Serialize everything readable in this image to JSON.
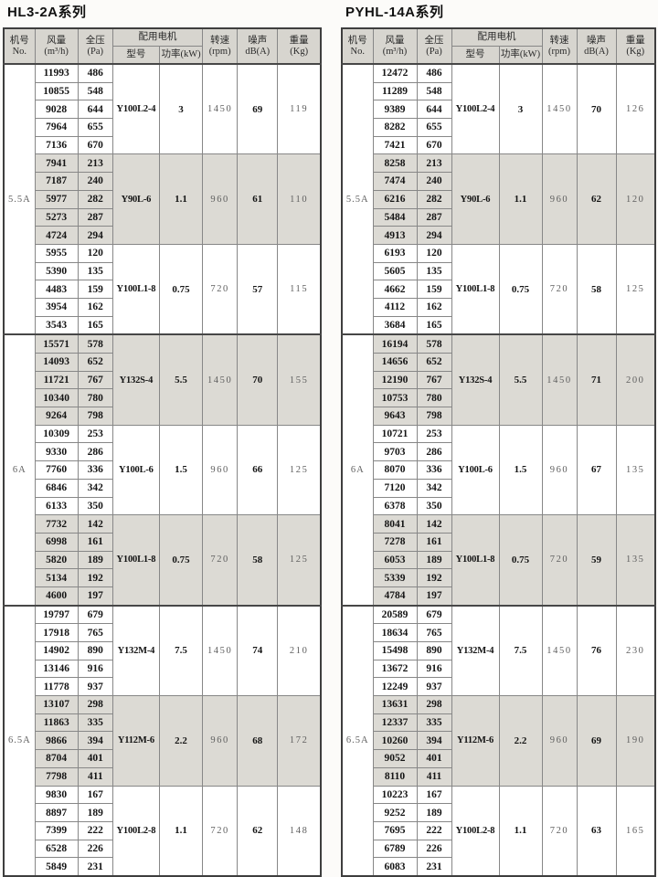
{
  "colors": {
    "page_bg": "#fcfbf9",
    "header_bg": "#d7d5cf",
    "shaded_band_bg": "#dcdad4",
    "grid_line": "#878787",
    "outer_border": "#3e3e3e"
  },
  "header": {
    "series": [
      "机号",
      "No."
    ],
    "airflow": [
      "风量",
      "(m³/h)"
    ],
    "pressure": [
      "全压",
      "(Pa)"
    ],
    "motor_group": "配用电机",
    "motor_model": "型号",
    "motor_power": "功率(kW)",
    "speed": [
      "转速",
      "(rpm)"
    ],
    "noise": [
      "噪声",
      "dB(A)"
    ],
    "weight": [
      "重量",
      "(Kg)"
    ]
  },
  "tables": [
    {
      "title": "HL3-2A系列",
      "sections": [
        {
          "no": "5.5A",
          "groups": [
            {
              "shaded": false,
              "model": "Y100L2-4",
              "power": "3",
              "rpm": "1450",
              "noise": "69",
              "weight": "119",
              "rows": [
                [
                  11993,
                  486
                ],
                [
                  10855,
                  548
                ],
                [
                  9028,
                  644
                ],
                [
                  7964,
                  655
                ],
                [
                  7136,
                  670
                ]
              ]
            },
            {
              "shaded": true,
              "model": "Y90L-6",
              "power": "1.1",
              "rpm": "960",
              "noise": "61",
              "weight": "110",
              "rows": [
                [
                  7941,
                  213
                ],
                [
                  7187,
                  240
                ],
                [
                  5977,
                  282
                ],
                [
                  5273,
                  287
                ],
                [
                  4724,
                  294
                ]
              ]
            },
            {
              "shaded": false,
              "model": "Y100L1-8",
              "power": "0.75",
              "rpm": "720",
              "noise": "57",
              "weight": "115",
              "rows": [
                [
                  5955,
                  120
                ],
                [
                  5390,
                  135
                ],
                [
                  4483,
                  159
                ],
                [
                  3954,
                  162
                ],
                [
                  3543,
                  165
                ]
              ]
            }
          ]
        },
        {
          "no": "6A",
          "groups": [
            {
              "shaded": true,
              "model": "Y132S-4",
              "power": "5.5",
              "rpm": "1450",
              "noise": "70",
              "weight": "155",
              "rows": [
                [
                  15571,
                  578
                ],
                [
                  14093,
                  652
                ],
                [
                  11721,
                  767
                ],
                [
                  10340,
                  780
                ],
                [
                  9264,
                  798
                ]
              ]
            },
            {
              "shaded": false,
              "model": "Y100L-6",
              "power": "1.5",
              "rpm": "960",
              "noise": "66",
              "weight": "125",
              "rows": [
                [
                  10309,
                  253
                ],
                [
                  9330,
                  286
                ],
                [
                  7760,
                  336
                ],
                [
                  6846,
                  342
                ],
                [
                  6133,
                  350
                ]
              ]
            },
            {
              "shaded": true,
              "model": "Y100L1-8",
              "power": "0.75",
              "rpm": "720",
              "noise": "58",
              "weight": "125",
              "rows": [
                [
                  7732,
                  142
                ],
                [
                  6998,
                  161
                ],
                [
                  5820,
                  189
                ],
                [
                  5134,
                  192
                ],
                [
                  4600,
                  197
                ]
              ]
            }
          ]
        },
        {
          "no": "6.5A",
          "groups": [
            {
              "shaded": false,
              "model": "Y132M-4",
              "power": "7.5",
              "rpm": "1450",
              "noise": "74",
              "weight": "210",
              "rows": [
                [
                  19797,
                  679
                ],
                [
                  17918,
                  765
                ],
                [
                  14902,
                  890
                ],
                [
                  13146,
                  916
                ],
                [
                  11778,
                  937
                ]
              ]
            },
            {
              "shaded": true,
              "model": "Y112M-6",
              "power": "2.2",
              "rpm": "960",
              "noise": "68",
              "weight": "172",
              "rows": [
                [
                  13107,
                  298
                ],
                [
                  11863,
                  335
                ],
                [
                  9866,
                  394
                ],
                [
                  8704,
                  401
                ],
                [
                  7798,
                  411
                ]
              ]
            },
            {
              "shaded": false,
              "model": "Y100L2-8",
              "power": "1.1",
              "rpm": "720",
              "noise": "62",
              "weight": "148",
              "rows": [
                [
                  9830,
                  167
                ],
                [
                  8897,
                  189
                ],
                [
                  7399,
                  222
                ],
                [
                  6528,
                  226
                ],
                [
                  5849,
                  231
                ]
              ]
            }
          ]
        }
      ]
    },
    {
      "title": "PYHL-14A系列",
      "sections": [
        {
          "no": "5.5A",
          "groups": [
            {
              "shaded": false,
              "model": "Y100L2-4",
              "power": "3",
              "rpm": "1450",
              "noise": "70",
              "weight": "126",
              "rows": [
                [
                  12472,
                  486
                ],
                [
                  11289,
                  548
                ],
                [
                  9389,
                  644
                ],
                [
                  8282,
                  655
                ],
                [
                  7421,
                  670
                ]
              ]
            },
            {
              "shaded": true,
              "model": "Y90L-6",
              "power": "1.1",
              "rpm": "960",
              "noise": "62",
              "weight": "120",
              "rows": [
                [
                  8258,
                  213
                ],
                [
                  7474,
                  240
                ],
                [
                  6216,
                  282
                ],
                [
                  5484,
                  287
                ],
                [
                  4913,
                  294
                ]
              ]
            },
            {
              "shaded": false,
              "model": "Y100L1-8",
              "power": "0.75",
              "rpm": "720",
              "noise": "58",
              "weight": "125",
              "rows": [
                [
                  6193,
                  120
                ],
                [
                  5605,
                  135
                ],
                [
                  4662,
                  159
                ],
                [
                  4112,
                  162
                ],
                [
                  3684,
                  165
                ]
              ]
            }
          ]
        },
        {
          "no": "6A",
          "groups": [
            {
              "shaded": true,
              "model": "Y132S-4",
              "power": "5.5",
              "rpm": "1450",
              "noise": "71",
              "weight": "200",
              "rows": [
                [
                  16194,
                  578
                ],
                [
                  14656,
                  652
                ],
                [
                  12190,
                  767
                ],
                [
                  10753,
                  780
                ],
                [
                  9643,
                  798
                ]
              ]
            },
            {
              "shaded": false,
              "model": "Y100L-6",
              "power": "1.5",
              "rpm": "960",
              "noise": "67",
              "weight": "135",
              "rows": [
                [
                  10721,
                  253
                ],
                [
                  9703,
                  286
                ],
                [
                  8070,
                  336
                ],
                [
                  7120,
                  342
                ],
                [
                  6378,
                  350
                ]
              ]
            },
            {
              "shaded": true,
              "model": "Y100L1-8",
              "power": "0.75",
              "rpm": "720",
              "noise": "59",
              "weight": "135",
              "rows": [
                [
                  8041,
                  142
                ],
                [
                  7278,
                  161
                ],
                [
                  6053,
                  189
                ],
                [
                  5339,
                  192
                ],
                [
                  4784,
                  197
                ]
              ]
            }
          ]
        },
        {
          "no": "6.5A",
          "groups": [
            {
              "shaded": false,
              "model": "Y132M-4",
              "power": "7.5",
              "rpm": "1450",
              "noise": "76",
              "weight": "230",
              "rows": [
                [
                  20589,
                  679
                ],
                [
                  18634,
                  765
                ],
                [
                  15498,
                  890
                ],
                [
                  13672,
                  916
                ],
                [
                  12249,
                  937
                ]
              ]
            },
            {
              "shaded": true,
              "model": "Y112M-6",
              "power": "2.2",
              "rpm": "960",
              "noise": "69",
              "weight": "190",
              "rows": [
                [
                  13631,
                  298
                ],
                [
                  12337,
                  335
                ],
                [
                  10260,
                  394
                ],
                [
                  9052,
                  401
                ],
                [
                  8110,
                  411
                ]
              ]
            },
            {
              "shaded": false,
              "model": "Y100L2-8",
              "power": "1.1",
              "rpm": "720",
              "noise": "63",
              "weight": "165",
              "rows": [
                [
                  10223,
                  167
                ],
                [
                  9252,
                  189
                ],
                [
                  7695,
                  222
                ],
                [
                  6789,
                  226
                ],
                [
                  6083,
                  231
                ]
              ]
            }
          ]
        }
      ]
    }
  ]
}
